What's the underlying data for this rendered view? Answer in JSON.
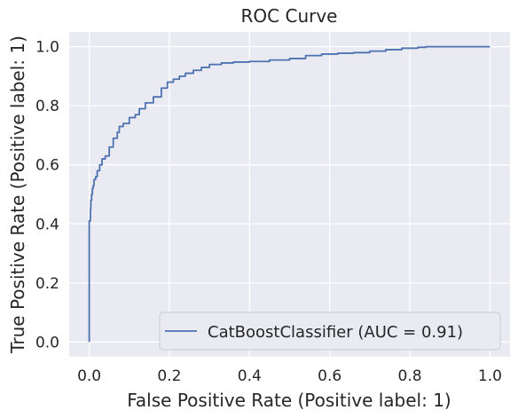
{
  "chart_data": {
    "type": "line",
    "title": "ROC Curve",
    "xlabel": "False Positive Rate (Positive label: 1)",
    "ylabel": "True Positive Rate (Positive label: 1)",
    "xlim": [
      -0.05,
      1.05
    ],
    "ylim": [
      -0.05,
      1.05
    ],
    "xticks": [
      0.0,
      0.2,
      0.4,
      0.6,
      0.8,
      1.0
    ],
    "yticks": [
      0.0,
      0.2,
      0.4,
      0.6,
      0.8,
      1.0
    ],
    "xtick_labels": [
      "0.0",
      "0.2",
      "0.4",
      "0.6",
      "0.8",
      "1.0"
    ],
    "ytick_labels": [
      "0.0",
      "0.2",
      "0.4",
      "0.6",
      "0.8",
      "1.0"
    ],
    "grid": true,
    "legend_position": "bottom-right",
    "colors": {
      "background": "#eaeaf2",
      "grid": "#ffffff",
      "series": "#4c72b0"
    },
    "series": [
      {
        "name": "CatBoostClassifier (AUC = 0.91)",
        "x": [
          0.0,
          0.0,
          0.003,
          0.004,
          0.006,
          0.008,
          0.01,
          0.012,
          0.016,
          0.02,
          0.026,
          0.032,
          0.04,
          0.05,
          0.06,
          0.07,
          0.075,
          0.085,
          0.1,
          0.115,
          0.125,
          0.14,
          0.16,
          0.18,
          0.195,
          0.21,
          0.225,
          0.24,
          0.26,
          0.28,
          0.3,
          0.33,
          0.36,
          0.4,
          0.45,
          0.5,
          0.54,
          0.58,
          0.62,
          0.66,
          0.7,
          0.74,
          0.78,
          0.82,
          0.84,
          0.85,
          0.9,
          1.0
        ],
        "y": [
          0.0,
          0.33,
          0.41,
          0.45,
          0.48,
          0.5,
          0.52,
          0.53,
          0.55,
          0.56,
          0.58,
          0.6,
          0.62,
          0.63,
          0.66,
          0.69,
          0.71,
          0.73,
          0.74,
          0.76,
          0.77,
          0.79,
          0.81,
          0.83,
          0.86,
          0.88,
          0.89,
          0.9,
          0.91,
          0.92,
          0.93,
          0.94,
          0.945,
          0.948,
          0.95,
          0.955,
          0.96,
          0.97,
          0.975,
          0.978,
          0.98,
          0.985,
          0.99,
          0.995,
          0.998,
          1.0,
          1.0,
          1.0
        ]
      }
    ]
  }
}
